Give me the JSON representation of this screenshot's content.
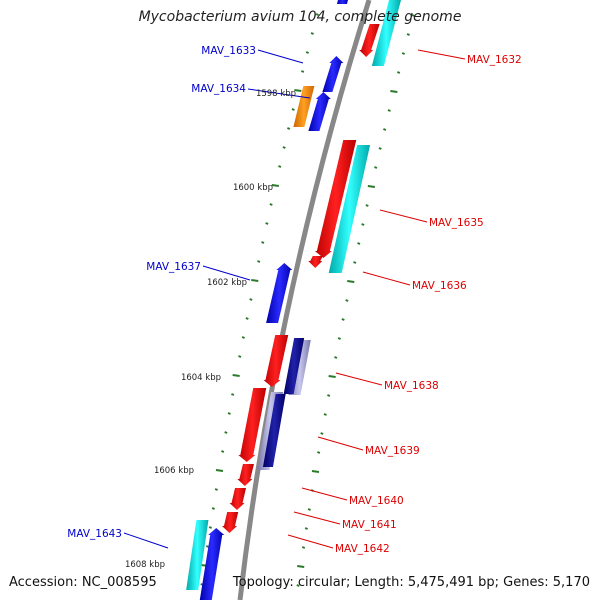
{
  "title": "Mycobacterium avium 104, complete genome",
  "accession": "Accession: NC_008595",
  "topology": "Topology: circular; Length: 5,475,491 bp; Genes: 5,170",
  "kbp_labels": [
    "1598 kbp",
    "1600 kbp",
    "1602 kbp",
    "1604 kbp",
    "1606 kbp",
    "1608 kbp"
  ],
  "gene_labels": [
    {
      "name": "MAV_1632",
      "strand": "reverse"
    },
    {
      "name": "MAV_1633",
      "strand": "forward"
    },
    {
      "name": "MAV_1634",
      "strand": "forward"
    },
    {
      "name": "MAV_1635",
      "strand": "reverse"
    },
    {
      "name": "MAV_1636",
      "strand": "reverse"
    },
    {
      "name": "MAV_1637",
      "strand": "forward"
    },
    {
      "name": "MAV_1638",
      "strand": "reverse"
    },
    {
      "name": "MAV_1639",
      "strand": "reverse"
    },
    {
      "name": "MAV_1640",
      "strand": "reverse"
    },
    {
      "name": "MAV_1641",
      "strand": "reverse"
    },
    {
      "name": "MAV_1642",
      "strand": "reverse"
    },
    {
      "name": "MAV_1643",
      "strand": "forward"
    }
  ],
  "colors": {
    "backbone": "#888888",
    "cds_forward": "#0000ee",
    "cds_reverse": "#ee0000",
    "gene_track": "#22dddd",
    "orange_feature": "#ff8800",
    "dark_feature": "#000088",
    "lavender_feature": "#9999cc",
    "tick": "#2a7a2a",
    "label_reverse": "#dd0000",
    "label_forward": "#0000cc"
  }
}
